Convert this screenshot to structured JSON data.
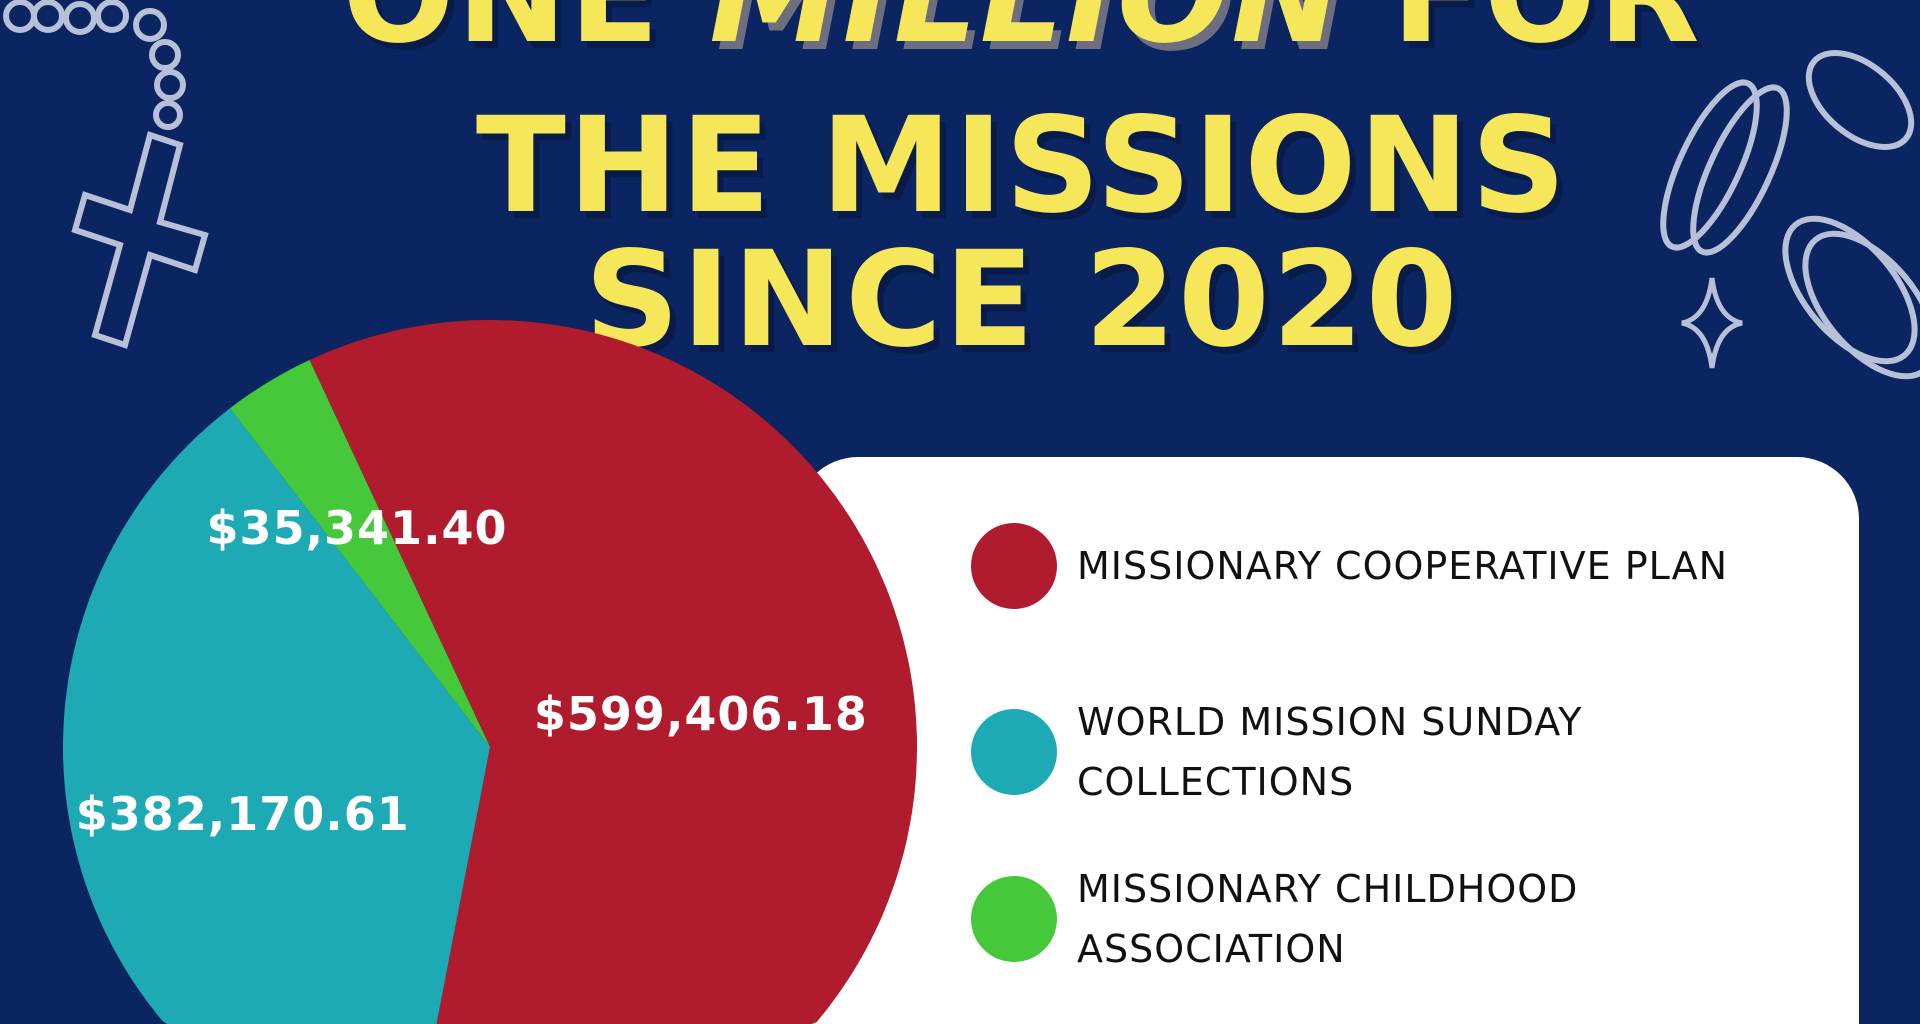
{
  "title": {
    "line1_a": "ONE ",
    "line1_b": "MILLION",
    "line1_c": " FOR",
    "line2": "THE MISSIONS",
    "line3": "SINCE 2020"
  },
  "decorations": [
    "rosary-icon",
    "coins-icon",
    "sparkle-icon"
  ],
  "chart_data": {
    "type": "pie",
    "slices": [
      {
        "name": "MISSIONARY COOPERATIVE PLAN",
        "value": 599406.18,
        "label": "$599,406.18",
        "color": "#b01b2e"
      },
      {
        "name": "WORLD MISSION SUNDAY COLLECTIONS",
        "value": 382170.61,
        "label": "$382,170.61",
        "color": "#1eaab4"
      },
      {
        "name": "MISSIONARY CHILDHOOD ASSOCIATION",
        "value": 35341.4,
        "label": "$35,341.40",
        "color": "#45c93a"
      }
    ],
    "legend": {
      "placement": "right",
      "entries": [
        {
          "line1": "MISSIONARY COOPERATIVE PLAN",
          "line2": ""
        },
        {
          "line1": "WORLD MISSION SUNDAY",
          "line2": "COLLECTIONS"
        },
        {
          "line1": "MISSIONARY CHILDHOOD",
          "line2": "ASSOCIATION"
        }
      ]
    }
  }
}
